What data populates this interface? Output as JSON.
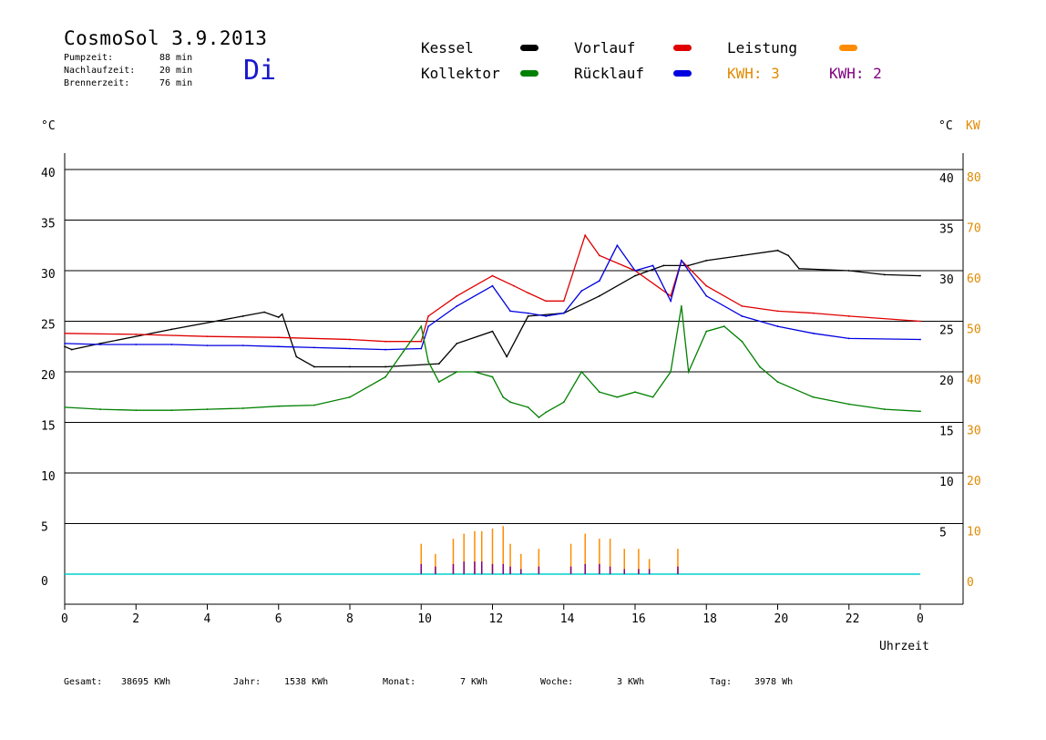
{
  "header": {
    "title": "CosmoSol 3.9.2013",
    "day": "Di",
    "stats": [
      {
        "label": "Pumpzeit:",
        "value": "88 min"
      },
      {
        "label": "Nachlaufzeit:",
        "value": "20 min"
      },
      {
        "label": "Brennerzeit:",
        "value": "76 min"
      }
    ]
  },
  "legend": {
    "kessel": "Kessel",
    "kollektor": "Kollektor",
    "vorlauf": "Vorlauf",
    "ruecklauf": "Rücklauf",
    "leistung": "Leistung",
    "kwh1": "KWH: 3",
    "kwh2": "KWH: 2"
  },
  "colors": {
    "kessel": "#000000",
    "kollektor": "#008000",
    "vorlauf": "#e00000",
    "ruecklauf": "#0000e0",
    "leistung": "#ff8c00",
    "kwh2": "#800080",
    "pump": "#00d0d0",
    "axis_right_kw": "#e08a00"
  },
  "footer": [
    {
      "label": "Gesamt:",
      "value": "38695 KWh"
    },
    {
      "label": "Jahr:",
      "value": "1538 KWh"
    },
    {
      "label": "Monat:",
      "value": "7 KWh"
    },
    {
      "label": "Woche:",
      "value": "3 KWh"
    },
    {
      "label": "Tag:",
      "value": "3978 Wh"
    }
  ],
  "chart_data": {
    "type": "line",
    "ylabel_left": "°C",
    "ylabel_right_temp": "°C",
    "ylabel_right_power": "KW",
    "xlabel": "Uhrzeit",
    "xlim": [
      0,
      24
    ],
    "ylim": [
      0,
      40
    ],
    "y2lim": [
      0,
      80
    ],
    "grid": true,
    "x_ticks": [
      "0",
      "2",
      "4",
      "6",
      "8",
      "10",
      "12",
      "14",
      "16",
      "18",
      "20",
      "22",
      "0"
    ],
    "y_ticks": [
      "0",
      "5",
      "10",
      "15",
      "20",
      "25",
      "30",
      "35",
      "40"
    ],
    "y_ticks_right_temp": [
      "5",
      "10",
      "15",
      "20",
      "25",
      "30",
      "35",
      "40"
    ],
    "y2_ticks": [
      "0",
      "10",
      "20",
      "30",
      "40",
      "50",
      "60",
      "70",
      "80"
    ],
    "series": [
      {
        "name": "Kessel",
        "color": "#000000",
        "x": [
          0,
          0.2,
          1,
          3,
          5,
          5.6,
          6,
          6.1,
          6.5,
          7,
          8,
          9,
          10.5,
          11,
          12,
          12.4,
          13,
          14,
          15,
          16,
          16.8,
          17.5,
          18,
          19,
          20,
          20.3,
          20.6,
          22,
          23,
          24
        ],
        "y": [
          22.5,
          22.2,
          22.8,
          24.2,
          25.5,
          25.9,
          25.4,
          25.7,
          21.5,
          20.5,
          20.5,
          20.5,
          20.8,
          22.8,
          24.0,
          21.5,
          25.5,
          25.8,
          27.5,
          29.5,
          30.5,
          30.5,
          31.0,
          31.5,
          32.0,
          31.5,
          30.2,
          30.0,
          29.6,
          29.5
        ]
      },
      {
        "name": "Vorlauf",
        "color": "#e00000",
        "x": [
          0,
          2,
          4,
          6,
          8,
          9,
          10,
          10.2,
          11,
          12,
          12.6,
          13,
          13.5,
          14,
          14.6,
          15,
          16,
          17,
          17.3,
          18,
          19,
          20,
          21,
          22,
          24
        ],
        "y": [
          23.8,
          23.7,
          23.5,
          23.4,
          23.2,
          23.0,
          23.0,
          25.5,
          27.5,
          29.5,
          28.5,
          27.8,
          27.0,
          27.0,
          33.5,
          31.5,
          30.0,
          27.5,
          31.0,
          28.5,
          26.5,
          26.0,
          25.8,
          25.5,
          25.0
        ]
      },
      {
        "name": "Rücklauf",
        "color": "#0000e0",
        "x": [
          0,
          1,
          2,
          3,
          4,
          5,
          6,
          7,
          8,
          9,
          10,
          10.2,
          11,
          12,
          12.5,
          13,
          13.5,
          14,
          14.5,
          15,
          15.5,
          16,
          16.5,
          17,
          17.3,
          18,
          19,
          20,
          21,
          22,
          24
        ],
        "y": [
          22.8,
          22.7,
          22.7,
          22.7,
          22.6,
          22.6,
          22.5,
          22.4,
          22.3,
          22.2,
          22.3,
          24.5,
          26.5,
          28.5,
          26.0,
          25.8,
          25.5,
          25.8,
          28.0,
          29.0,
          32.5,
          30.0,
          30.5,
          27.0,
          31.0,
          27.5,
          25.5,
          24.5,
          23.8,
          23.3,
          23.2
        ]
      },
      {
        "name": "Kollektor",
        "color": "#008000",
        "x": [
          0,
          1,
          2,
          3,
          4,
          5,
          6,
          7,
          8,
          9,
          9.5,
          10,
          10.2,
          10.5,
          11,
          11.5,
          12,
          12.3,
          12.5,
          13,
          13.3,
          13.5,
          14,
          14.5,
          15,
          15.5,
          16,
          16.5,
          17,
          17.3,
          17.5,
          18,
          18.5,
          19,
          19.5,
          20,
          21,
          22,
          23,
          24
        ],
        "y": [
          16.5,
          16.3,
          16.2,
          16.2,
          16.3,
          16.4,
          16.6,
          16.7,
          17.5,
          19.5,
          22.0,
          24.5,
          21.0,
          19.0,
          20.0,
          20.0,
          19.5,
          17.5,
          17.0,
          16.5,
          15.5,
          16.0,
          17.0,
          20.0,
          18.0,
          17.5,
          18.0,
          17.5,
          20.0,
          26.5,
          20.0,
          24.0,
          24.5,
          23.0,
          20.5,
          19.0,
          17.5,
          16.8,
          16.3,
          16.1
        ]
      },
      {
        "name": "Leistung",
        "color": "#ff8c00",
        "x": [
          10,
          10.4,
          10.9,
          11.2,
          11.5,
          11.7,
          12,
          12.3,
          12.5,
          12.8,
          13.3,
          14.2,
          14.6,
          15,
          15.3,
          15.7,
          16.1,
          16.4,
          17.2
        ],
        "y": [
          6,
          4,
          7,
          8,
          8.5,
          8.5,
          9,
          9.5,
          6,
          4,
          5,
          6,
          8,
          7,
          7,
          5,
          5,
          3,
          5
        ]
      },
      {
        "name": "KWH: 2",
        "color": "#800080",
        "x": [
          10,
          10.4,
          10.9,
          11.2,
          11.5,
          11.7,
          12,
          12.3,
          12.5,
          12.8,
          13.3,
          14.2,
          14.6,
          15,
          15.3,
          15.7,
          16.1,
          16.4,
          17.2
        ],
        "y": [
          2,
          1.5,
          2,
          2.5,
          2.5,
          2.5,
          2,
          2,
          1.5,
          1,
          1.5,
          1.5,
          2,
          2,
          1.5,
          1,
          1,
          1,
          1.5
        ]
      }
    ]
  }
}
